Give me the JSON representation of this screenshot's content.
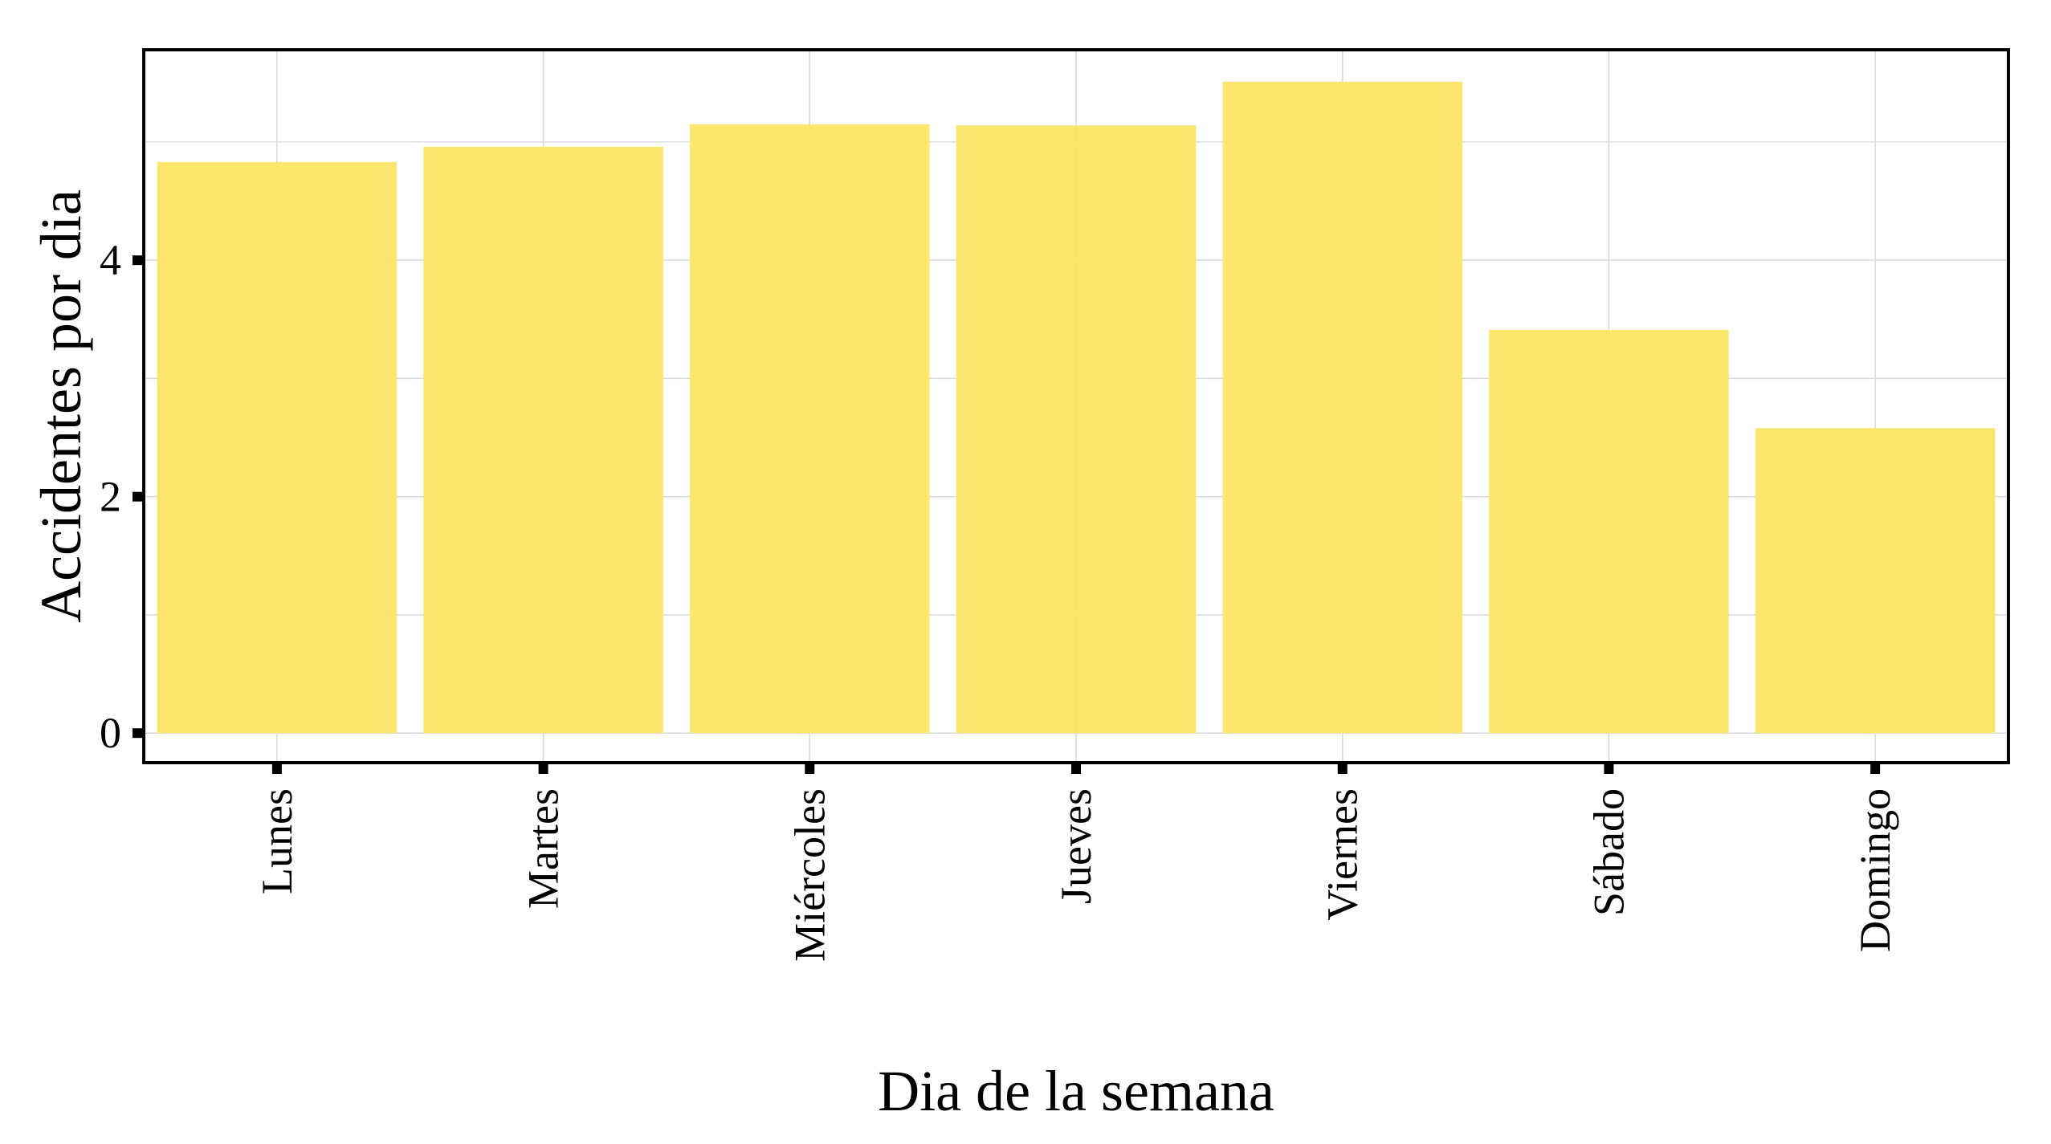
{
  "chart_data": {
    "type": "bar",
    "title": "",
    "xlabel": "Dia de la semana",
    "ylabel": "Accidentes por dia",
    "categories": [
      "Lunes",
      "Martes",
      "Miércoles",
      "Jueves",
      "Viernes",
      "Sábado",
      "Domingo"
    ],
    "values": [
      4.83,
      4.96,
      5.15,
      5.14,
      5.51,
      3.41,
      2.58
    ],
    "ylim": [
      -0.25,
      5.78
    ],
    "yticks": [
      0,
      2,
      4
    ],
    "grid": true,
    "legend": "none",
    "colors": {
      "bar": "#fde566",
      "grid": "#d9d9d9",
      "frame": "#000000"
    }
  }
}
